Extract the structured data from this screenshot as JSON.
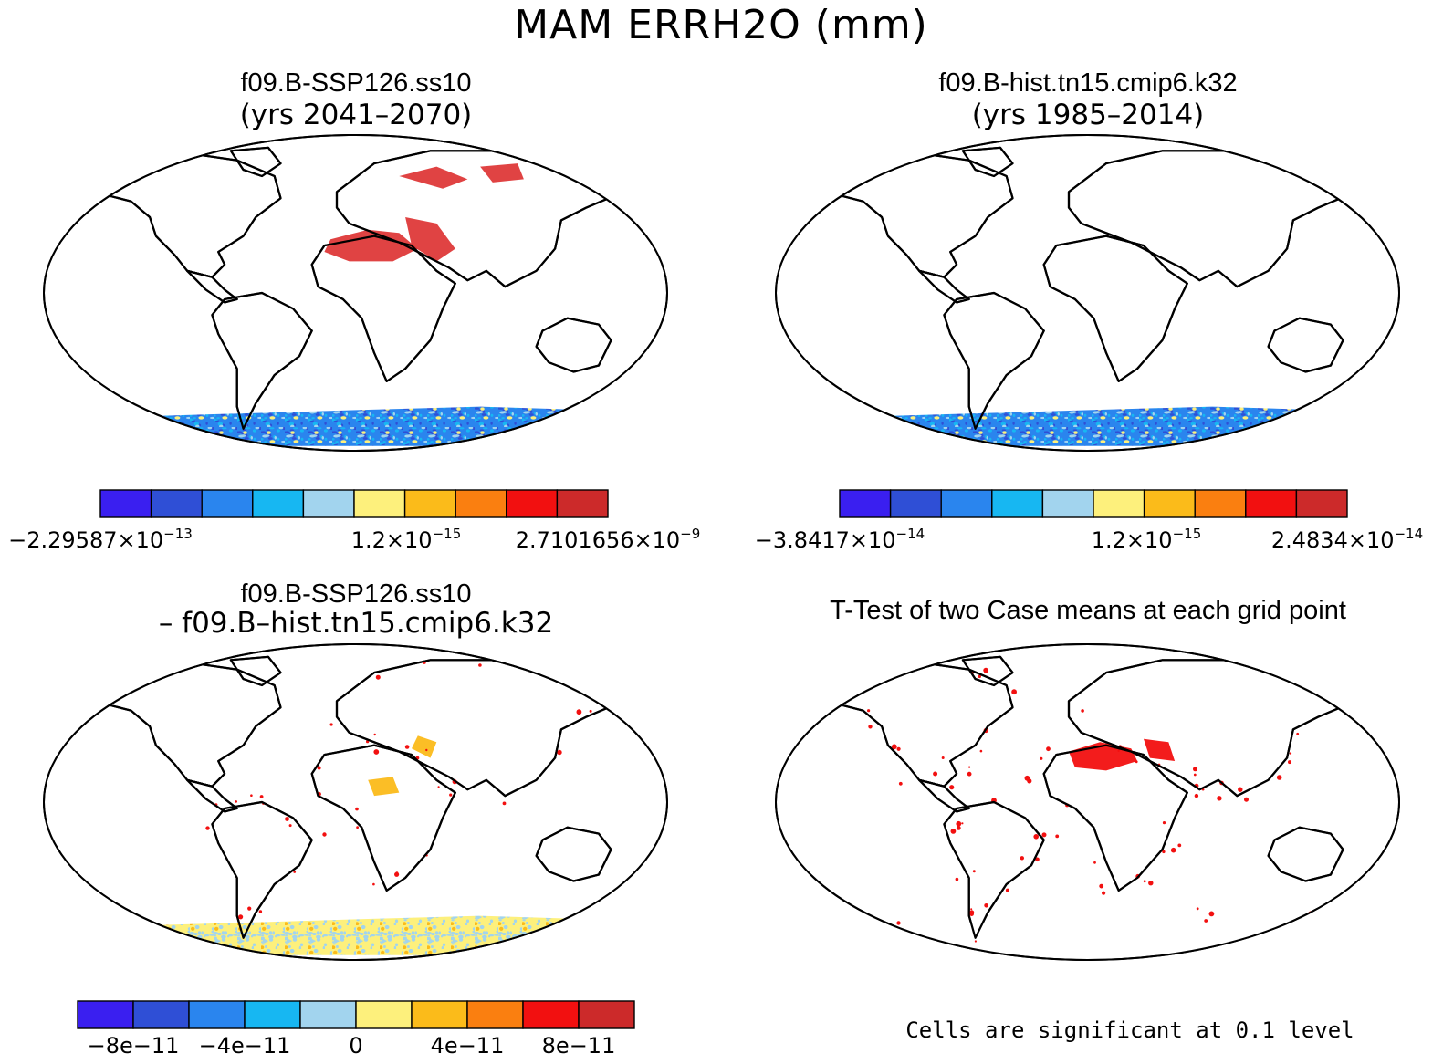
{
  "figure_title": "MAM ERRH2O (mm)",
  "panels": [
    {
      "title": "f09.B-SSP126.ss10",
      "subtitle": "(yrs 2041–2070)",
      "land_style": "blue",
      "colorbar": {
        "colors": [
          "#3a1ff0",
          "#2f4fd6",
          "#2a85ee",
          "#17b7f2",
          "#a2d4ee",
          "#fdf07c",
          "#fbbb1a",
          "#fa7f10",
          "#f21010",
          "#cc2a2a"
        ],
        "labels": [
          {
            "mantissa": "−2.29587×10",
            "exp": "−13"
          },
          {
            "mantissa": "1.2×10",
            "exp": "−15"
          },
          {
            "mantissa": "2.7101656×10",
            "exp": "−9"
          }
        ]
      }
    },
    {
      "title": "f09.B-hist.tn15.cmip6.k32",
      "subtitle": "(yrs 1985–2014)",
      "land_style": "blue",
      "colorbar": {
        "colors": [
          "#3a1ff0",
          "#2f4fd6",
          "#2a85ee",
          "#17b7f2",
          "#a2d4ee",
          "#fdf07c",
          "#fbbb1a",
          "#fa7f10",
          "#f21010",
          "#cc2a2a"
        ],
        "labels": [
          {
            "mantissa": "−3.8417×10",
            "exp": "−14"
          },
          {
            "mantissa": "1.2×10",
            "exp": "−15"
          },
          {
            "mantissa": "2.4834×10",
            "exp": "−14"
          }
        ]
      }
    },
    {
      "title": "f09.B-SSP126.ss10",
      "subtitle": "– f09.B–hist.tn15.cmip6.k32",
      "land_style": "diff",
      "colorbar": {
        "colors": [
          "#3a1ff0",
          "#2f4fd6",
          "#2a85ee",
          "#17b7f2",
          "#a2d4ee",
          "#fdf07c",
          "#fbbb1a",
          "#fa7f10",
          "#f21010",
          "#cc2a2a"
        ],
        "ticks": [
          "−8e−11",
          "−4e−11",
          "0",
          "4e−11",
          "8e−11"
        ]
      }
    },
    {
      "title": "T-Test of two Case means at each grid point",
      "subtitle": "",
      "land_style": "sig",
      "note": "Cells are significant at 0.1 level"
    }
  ],
  "chart_data": {
    "type": "heatmap",
    "projection": "Robinson",
    "variable": "ERRH2O",
    "units": "mm",
    "season": "MAM"
  }
}
